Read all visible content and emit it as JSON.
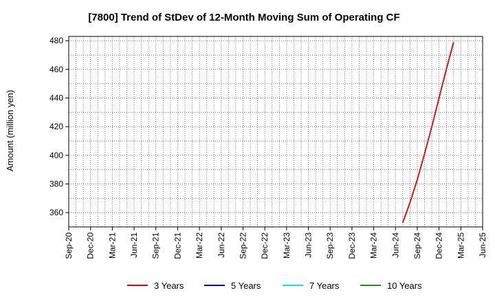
{
  "chart_data": {
    "type": "line",
    "title": "[7800]  Trend of StDev of 12-Month Moving Sum of Operating CF",
    "xlabel": "",
    "ylabel": "Amount (million yen)",
    "x_ticks": [
      "Sep-20",
      "Dec-20",
      "Mar-21",
      "Jun-21",
      "Sep-21",
      "Dec-21",
      "Mar-22",
      "Jun-22",
      "Sep-22",
      "Dec-22",
      "Mar-23",
      "Jun-23",
      "Sep-23",
      "Dec-23",
      "Mar-24",
      "Jun-24",
      "Sep-24",
      "Dec-24",
      "Mar-25",
      "Jun-25"
    ],
    "y_ticks": [
      360,
      380,
      400,
      420,
      440,
      460,
      480
    ],
    "ylim": [
      350,
      483
    ],
    "grid": true,
    "legend_position": "bottom",
    "series": [
      {
        "name": "3 Years",
        "color": "#dd0000",
        "points": [
          {
            "x": "Jul-24",
            "y": 353
          },
          {
            "x": "Aug-24",
            "y": 367
          },
          {
            "x": "Sep-24",
            "y": 383
          },
          {
            "x": "Oct-24",
            "y": 401
          },
          {
            "x": "Nov-24",
            "y": 420
          },
          {
            "x": "Dec-24",
            "y": 440
          },
          {
            "x": "Jan-25",
            "y": 460
          },
          {
            "x": "Feb-25",
            "y": 479
          }
        ]
      },
      {
        "name": "5 Years",
        "color": "#0000cc",
        "points": []
      },
      {
        "name": "7 Years",
        "color": "#00e5ee",
        "points": []
      },
      {
        "name": "10 Years",
        "color": "#228b22",
        "points": []
      }
    ]
  }
}
